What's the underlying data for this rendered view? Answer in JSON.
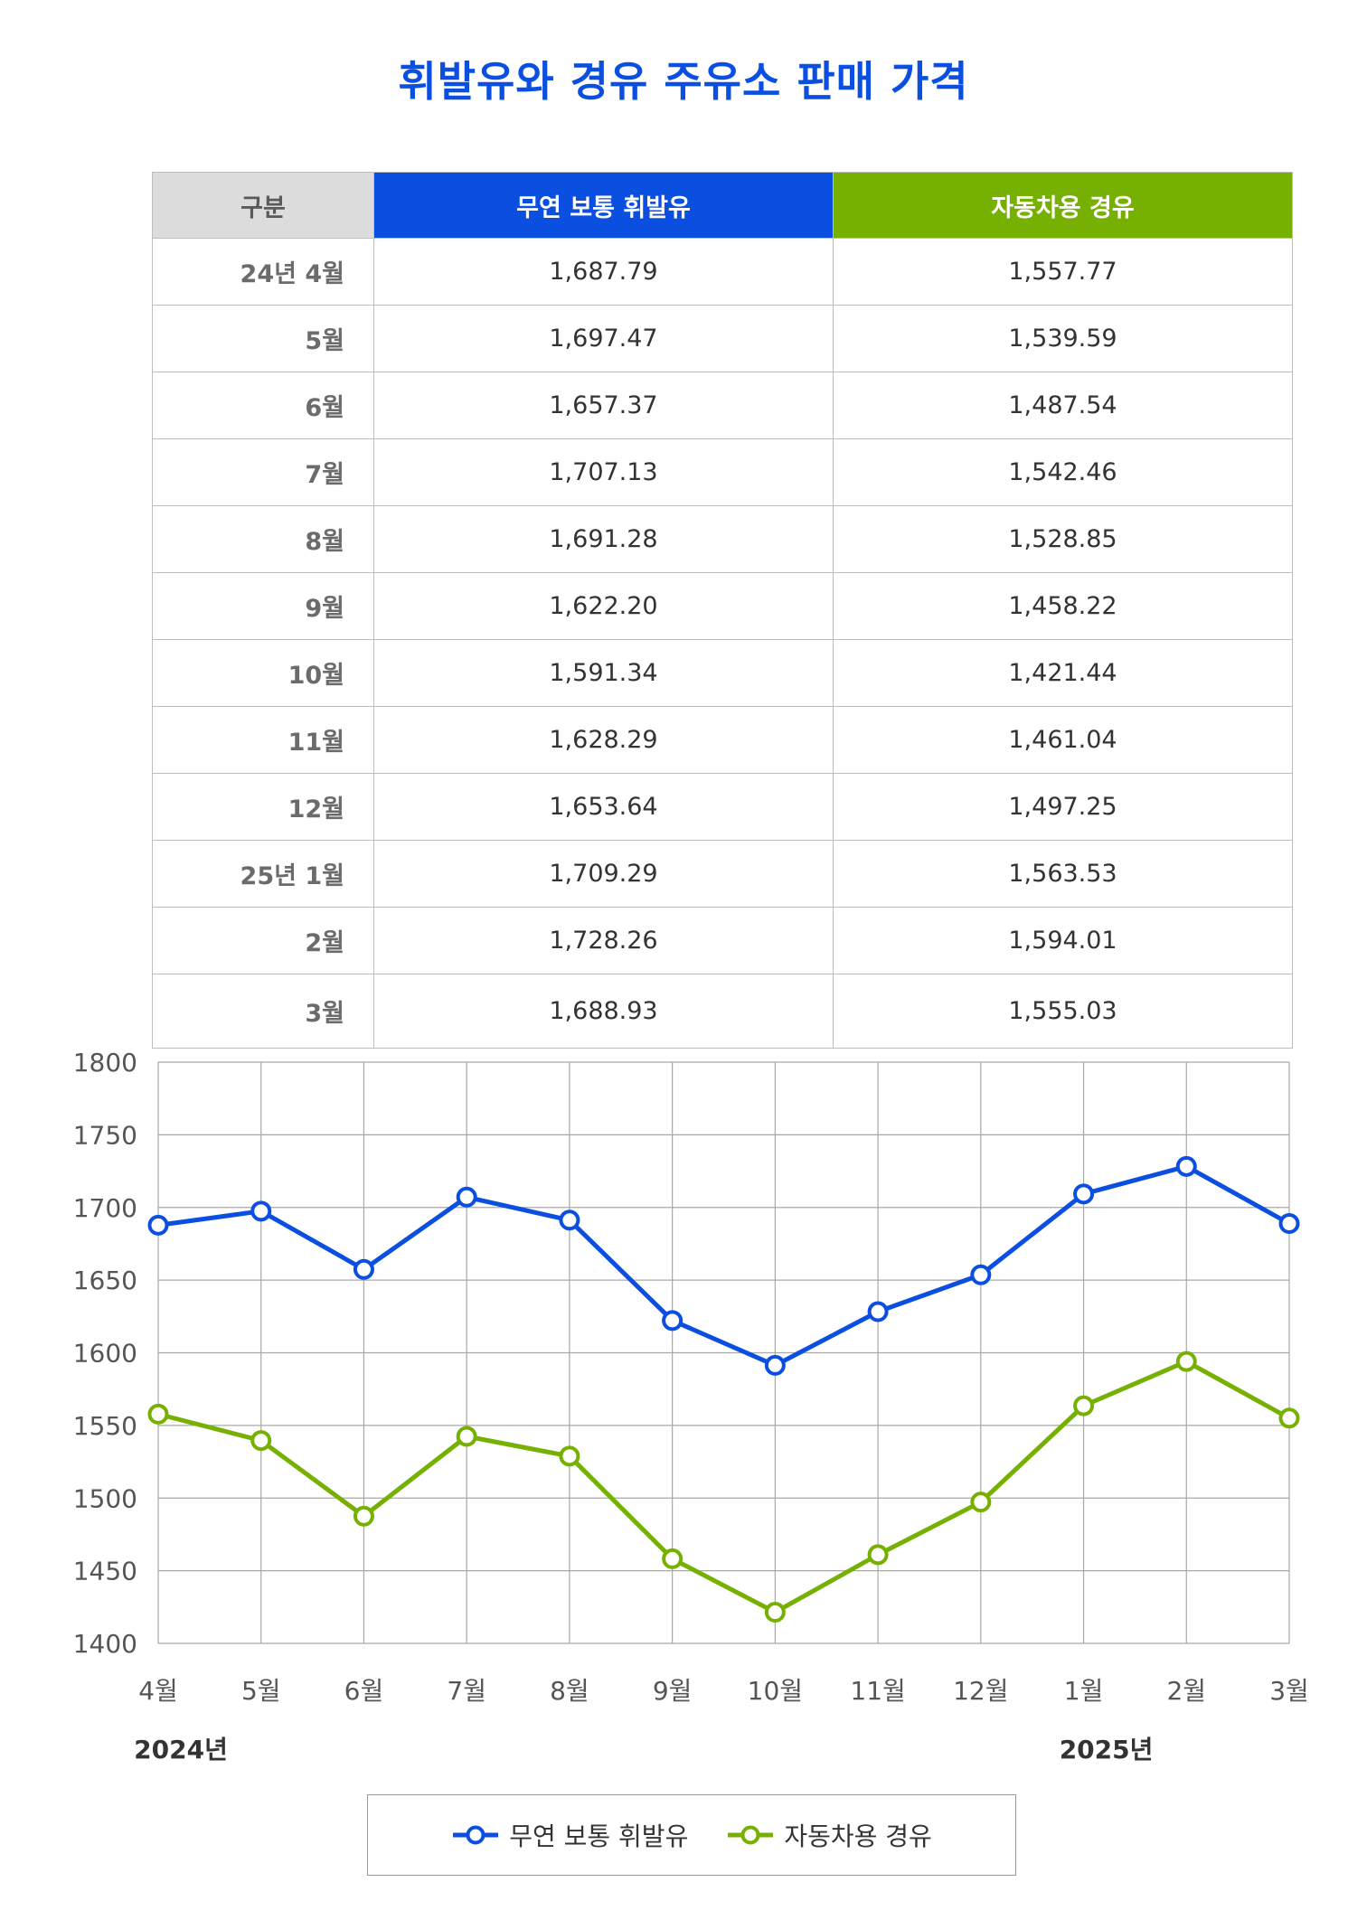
{
  "title": "휘발유와 경유 주유소 판매 가격",
  "table": {
    "header": {
      "label": "구분",
      "gasoline": "무연 보통 휘발유",
      "diesel": "자동차용 경유"
    },
    "rows": [
      {
        "label": "24년 4월",
        "gasoline": "1,687.79",
        "diesel": "1,557.77"
      },
      {
        "label": "5월",
        "gasoline": "1,697.47",
        "diesel": "1,539.59"
      },
      {
        "label": "6월",
        "gasoline": "1,657.37",
        "diesel": "1,487.54"
      },
      {
        "label": "7월",
        "gasoline": "1,707.13",
        "diesel": "1,542.46"
      },
      {
        "label": "8월",
        "gasoline": "1,691.28",
        "diesel": "1,528.85"
      },
      {
        "label": "9월",
        "gasoline": "1,622.20",
        "diesel": "1,458.22"
      },
      {
        "label": "10월",
        "gasoline": "1,591.34",
        "diesel": "1,421.44"
      },
      {
        "label": "11월",
        "gasoline": "1,628.29",
        "diesel": "1,461.04"
      },
      {
        "label": "12월",
        "gasoline": "1,653.64",
        "diesel": "1,497.25"
      },
      {
        "label": "25년 1월",
        "gasoline": "1,709.29",
        "diesel": "1,563.53"
      },
      {
        "label": "2월",
        "gasoline": "1,728.26",
        "diesel": "1,594.01"
      },
      {
        "label": "3월",
        "gasoline": "1,688.93",
        "diesel": "1,555.03"
      }
    ]
  },
  "chart_data": {
    "type": "line",
    "categories": [
      "4월",
      "5월",
      "6월",
      "7월",
      "8월",
      "9월",
      "10월",
      "11월",
      "12월",
      "1월",
      "2월",
      "3월"
    ],
    "year_labels": [
      "2024년",
      "2025년"
    ],
    "ylim": [
      1400,
      1800
    ],
    "yticks": [
      1800,
      1750,
      1700,
      1650,
      1600,
      1550,
      1500,
      1450,
      1400
    ],
    "grid": true,
    "legend_position": "bottom",
    "series": [
      {
        "name": "무연 보통 휘발유",
        "color": "#0b4fe0",
        "values": [
          1687.79,
          1697.47,
          1657.37,
          1707.13,
          1691.28,
          1622.2,
          1591.34,
          1628.29,
          1653.64,
          1709.29,
          1728.26,
          1688.93
        ]
      },
      {
        "name": "자동차용 경유",
        "color": "#76b000",
        "values": [
          1557.77,
          1539.59,
          1487.54,
          1542.46,
          1528.85,
          1458.22,
          1421.44,
          1461.04,
          1497.25,
          1563.53,
          1594.01,
          1555.03
        ]
      }
    ]
  }
}
